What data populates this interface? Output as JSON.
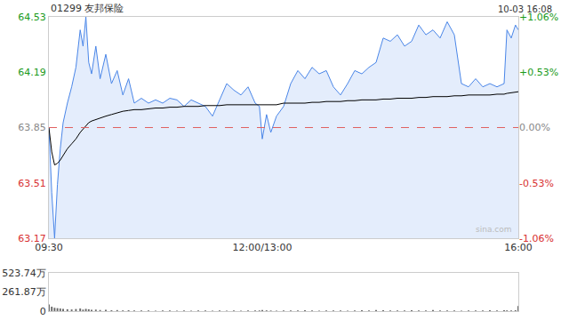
{
  "chart_data": [
    {
      "type": "line",
      "title": "01299 友邦保险",
      "subtitle": "10-03 16:08",
      "source": "sina.com",
      "x": [
        0,
        2,
        4,
        6,
        8,
        10,
        13,
        16,
        19,
        22,
        24,
        26,
        28,
        30,
        33,
        36,
        40,
        44,
        48,
        52,
        56,
        60,
        65,
        70,
        75,
        80,
        85,
        90,
        95,
        100,
        105,
        110,
        115,
        120,
        125,
        130,
        135,
        140,
        145,
        148,
        150,
        153,
        156,
        160,
        165,
        170,
        175,
        180,
        185,
        190,
        195,
        200,
        205,
        210,
        215,
        220,
        225,
        230,
        235,
        240,
        245,
        250,
        255,
        260,
        265,
        270,
        275,
        280,
        285,
        290,
        295,
        300,
        305,
        310,
        315,
        320,
        322,
        325,
        328,
        330
      ],
      "xlim": [
        0,
        330
      ],
      "xticks": [
        {
          "value": 0,
          "label": "09:30"
        },
        {
          "value": 150,
          "label": "12:00/13:00"
        },
        {
          "value": 330,
          "label": "16:00"
        }
      ],
      "ylim": [
        63.17,
        64.53
      ],
      "yticks": [
        63.17,
        63.51,
        63.85,
        64.19,
        64.53
      ],
      "y2lim": [
        -1.06,
        1.06
      ],
      "y2ticks": [
        {
          "value": -1.06,
          "label": "-1.06%"
        },
        {
          "value": -0.53,
          "label": "-0.53%"
        },
        {
          "value": 0,
          "label": "0.00%"
        },
        {
          "value": 0.53,
          "label": "+0.53%"
        },
        {
          "value": 1.06,
          "label": "+1.06%"
        }
      ],
      "baseline": 63.85,
      "grid": false,
      "series": [
        {
          "color": "#4a86e8",
          "values": [
            63.85,
            63.45,
            63.17,
            63.5,
            63.72,
            63.88,
            64.0,
            64.1,
            64.22,
            64.45,
            64.35,
            64.53,
            64.25,
            64.18,
            64.35,
            64.15,
            64.3,
            64.12,
            64.2,
            64.05,
            64.15,
            64.0,
            64.03,
            64.0,
            64.02,
            64.0,
            64.03,
            64.02,
            63.98,
            64.02,
            64.0,
            63.98,
            63.92,
            64.02,
            64.12,
            64.08,
            64.05,
            64.1,
            64.0,
            63.98,
            63.78,
            63.93,
            63.82,
            63.92,
            63.98,
            64.12,
            64.2,
            64.15,
            64.22,
            64.18,
            64.2,
            64.1,
            64.05,
            64.12,
            64.2,
            64.18,
            64.22,
            64.25,
            64.4,
            64.38,
            64.42,
            64.35,
            64.38,
            64.48,
            64.42,
            64.45,
            64.4,
            64.5,
            64.42,
            64.12,
            64.1,
            64.15,
            64.1,
            64.12,
            64.1,
            64.12,
            64.45,
            64.4,
            64.48,
            64.45
          ]
        },
        {
          "color": "#000000",
          "values": [
            63.85,
            63.7,
            63.62,
            63.63,
            63.65,
            63.68,
            63.72,
            63.75,
            63.78,
            63.82,
            63.84,
            63.86,
            63.88,
            63.89,
            63.9,
            63.91,
            63.92,
            63.93,
            63.94,
            63.95,
            63.955,
            63.96,
            63.96,
            63.965,
            63.97,
            63.97,
            63.975,
            63.975,
            63.98,
            63.98,
            63.98,
            63.985,
            63.985,
            63.985,
            63.99,
            63.99,
            63.99,
            63.99,
            63.99,
            63.99,
            63.99,
            63.99,
            63.99,
            63.99,
            64.0,
            64.0,
            64.0,
            64.0,
            64.005,
            64.005,
            64.01,
            64.01,
            64.01,
            64.015,
            64.015,
            64.02,
            64.02,
            64.02,
            64.025,
            64.025,
            64.03,
            64.03,
            64.03,
            64.035,
            64.035,
            64.04,
            64.04,
            64.04,
            64.045,
            64.045,
            64.05,
            64.05,
            64.05,
            64.05,
            64.055,
            64.055,
            64.06,
            64.065,
            64.07,
            64.07
          ]
        }
      ]
    },
    {
      "type": "bar",
      "x": [
        0,
        2,
        4,
        6,
        8,
        10,
        13,
        16,
        19,
        22,
        24,
        26,
        28,
        30,
        33,
        36,
        40,
        44,
        48,
        52,
        56,
        60,
        65,
        70,
        75,
        80,
        85,
        90,
        95,
        100,
        105,
        110,
        115,
        120,
        125,
        130,
        135,
        140,
        145,
        148,
        150,
        153,
        156,
        160,
        165,
        170,
        175,
        180,
        185,
        190,
        195,
        200,
        205,
        210,
        215,
        220,
        225,
        230,
        235,
        240,
        245,
        250,
        255,
        260,
        265,
        270,
        275,
        280,
        285,
        290,
        295,
        300,
        305,
        310,
        315,
        320,
        322,
        325,
        328,
        330
      ],
      "xlim": [
        0,
        330
      ],
      "ylim": [
        0,
        523.74
      ],
      "yticks": [
        0,
        {
          "value": 261.87,
          "label": "261.87万"
        },
        {
          "value": 523.74,
          "label": "523.74万"
        }
      ],
      "tick_labels": "y",
      "color": "#666666",
      "values": [
        90,
        60,
        45,
        40,
        35,
        30,
        25,
        22,
        28,
        35,
        20,
        30,
        25,
        18,
        20,
        15,
        18,
        12,
        14,
        10,
        12,
        10,
        8,
        10,
        7,
        9,
        8,
        6,
        10,
        7,
        8,
        9,
        6,
        8,
        7,
        9,
        6,
        8,
        10,
        9,
        15,
        10,
        8,
        7,
        8,
        10,
        9,
        12,
        8,
        7,
        9,
        10,
        8,
        7,
        9,
        12,
        10,
        15,
        12,
        9,
        8,
        10,
        12,
        8,
        9,
        14,
        10,
        9,
        8,
        7,
        9,
        10,
        8,
        12,
        9,
        11,
        10,
        8,
        12,
        70
      ]
    }
  ]
}
